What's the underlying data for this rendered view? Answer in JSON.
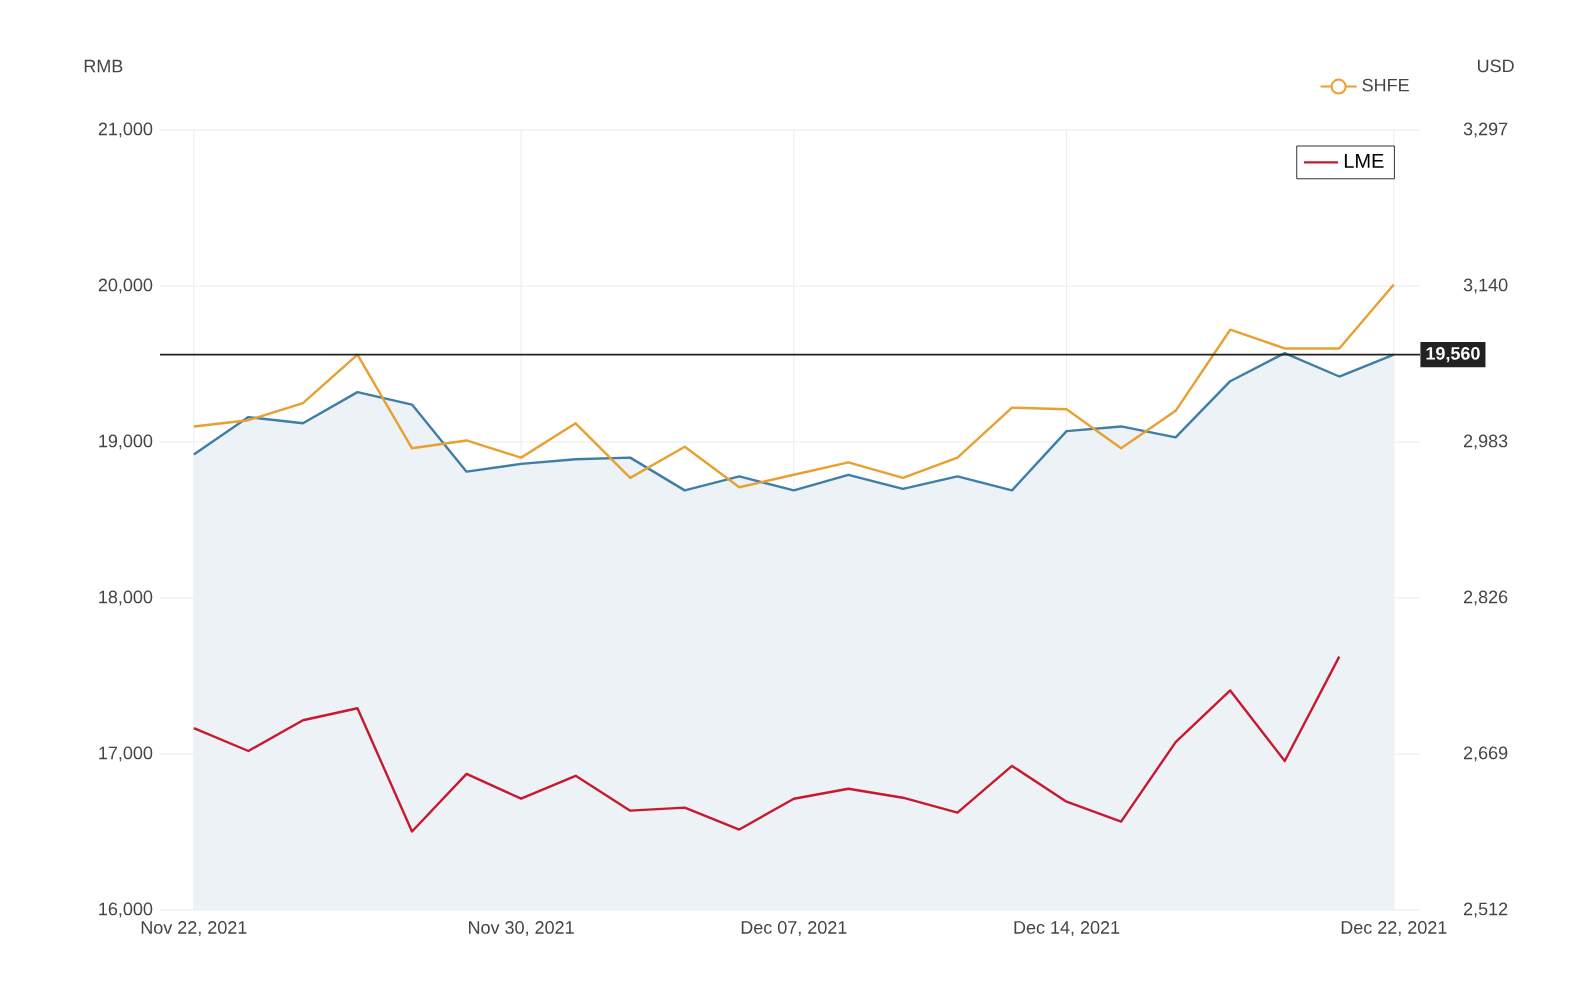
{
  "chart_data": {
    "type": "line",
    "ylabel": "RMB",
    "y2label": "USD",
    "categories": [
      "Nov 22, 2021",
      null,
      null,
      null,
      null,
      null,
      "Nov 30, 2021",
      null,
      null,
      null,
      null,
      "Dec 07, 2021",
      null,
      null,
      null,
      null,
      "Dec 14, 2021",
      null,
      null,
      null,
      null,
      null,
      "Dec 22, 2021"
    ],
    "series": [
      {
        "type": "area",
        "color": "#3f7ea6",
        "values": [
          18920,
          19160,
          19120,
          19320,
          19240,
          18810,
          18860,
          18890,
          18900,
          18690,
          18780,
          18690,
          18790,
          18700,
          18780,
          18690,
          19070,
          19100,
          19030,
          19390,
          19570,
          19420,
          19560
        ]
      },
      {
        "name": "SHFE",
        "color": "#e8a030",
        "values": [
          19100,
          19140,
          19250,
          19560,
          18960,
          19010,
          18900,
          19120,
          18770,
          18970,
          18710,
          18790,
          18870,
          18770,
          18900,
          19220,
          19210,
          18960,
          19200,
          19720,
          19600,
          19600,
          20010
        ]
      },
      {
        "name": "LME",
        "color": "#c8192e",
        "axis": "y2",
        "values": [
          2695,
          2672,
          2703,
          2715,
          2591,
          2649,
          2624,
          2647,
          2612,
          2615,
          2593,
          2624,
          2634,
          2625,
          2610,
          2657,
          2621,
          2601,
          2681,
          2733,
          2662,
          2767,
          null
        ]
      }
    ],
    "ylim": [
      16000,
      21000
    ],
    "yticks": [
      {
        "value": 16000,
        "label": "16,000"
      },
      {
        "value": 17000,
        "label": "17,000"
      },
      {
        "value": 18000,
        "label": "18,000"
      },
      {
        "value": 19000,
        "label": "19,000"
      },
      {
        "value": 20000,
        "label": "20,000"
      },
      {
        "value": 21000,
        "label": "21,000"
      }
    ],
    "y2lim": [
      2512,
      3297
    ],
    "y2ticks": [
      {
        "value": 2512,
        "label": "2,512"
      },
      {
        "value": 2669,
        "label": "2,669"
      },
      {
        "value": 2826,
        "label": "2,826"
      },
      {
        "value": 2983,
        "label": "2,983"
      },
      {
        "value": 3140,
        "label": "3,140"
      },
      {
        "value": 3297,
        "label": "3,297"
      }
    ],
    "ref_lines": [
      {
        "axis": "y",
        "value": 19560,
        "label": "19,560",
        "color": "#222222"
      }
    ],
    "grid": true,
    "legend": "top right"
  }
}
